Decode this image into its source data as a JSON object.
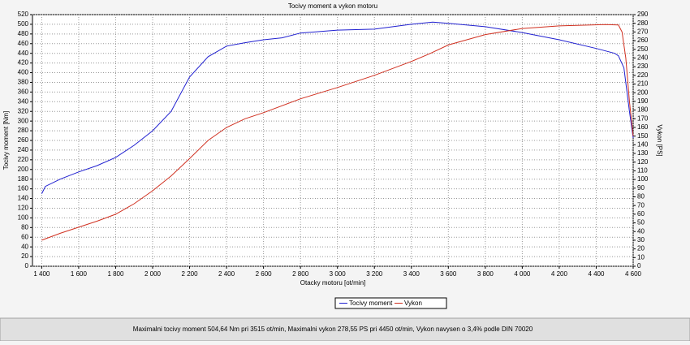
{
  "chart_data": {
    "type": "line",
    "title": "Tocivy moment a vykon motoru",
    "x_label": "Otacky motoru [ot/min]",
    "y_label": "Tocivy moment [Nm]",
    "y2_label": "Vykon [PS]",
    "annotation": "Maximalni tocivy moment 504,64 Nm pri 3515 ot/min,  Maximalni vykon 278,55 PS pri 4450 ot/min,  Vykon navysen o 3,4% podle DIN 70020",
    "grid": true,
    "legend": "bottom",
    "xlim": [
      1350,
      4600
    ],
    "xticks": [
      {
        "value": 1400,
        "label": "1 400"
      },
      {
        "value": 1600,
        "label": "1 600"
      },
      {
        "value": 1800,
        "label": "1 800"
      },
      {
        "value": 2000,
        "label": "2 000"
      },
      {
        "value": 2200,
        "label": "2 200"
      },
      {
        "value": 2400,
        "label": "2 400"
      },
      {
        "value": 2600,
        "label": "2 600"
      },
      {
        "value": 2800,
        "label": "2 800"
      },
      {
        "value": 3000,
        "label": "3 000"
      },
      {
        "value": 3200,
        "label": "3 200"
      },
      {
        "value": 3400,
        "label": "3 400"
      },
      {
        "value": 3600,
        "label": "3 600"
      },
      {
        "value": 3800,
        "label": "3 800"
      },
      {
        "value": 4000,
        "label": "4 000"
      },
      {
        "value": 4200,
        "label": "4 200"
      },
      {
        "value": 4400,
        "label": "4 400"
      },
      {
        "value": 4600,
        "label": "4 600"
      }
    ],
    "ylim": [
      0,
      520
    ],
    "yticks": [
      0,
      20,
      40,
      60,
      80,
      100,
      120,
      140,
      160,
      180,
      200,
      220,
      240,
      260,
      280,
      300,
      320,
      340,
      360,
      380,
      400,
      420,
      440,
      460,
      480,
      500,
      520
    ],
    "y2lim": [
      0,
      290
    ],
    "y2ticks": [
      0,
      10,
      20,
      30,
      40,
      50,
      60,
      70,
      80,
      90,
      100,
      110,
      120,
      130,
      140,
      150,
      160,
      170,
      180,
      190,
      200,
      210,
      220,
      230,
      240,
      250,
      260,
      270,
      280,
      290
    ],
    "series": [
      {
        "name": "Tocivy moment",
        "color": "#2020d0",
        "x": [
          1400,
          1420,
          1500,
          1600,
          1700,
          1800,
          1900,
          2000,
          2100,
          2200,
          2300,
          2400,
          2500,
          2600,
          2700,
          2800,
          3000,
          3200,
          3400,
          3515,
          3600,
          3800,
          4000,
          4200,
          4400,
          4500,
          4520,
          4550,
          4580,
          4600
        ],
        "values": [
          150,
          165,
          180,
          195,
          208,
          225,
          250,
          280,
          320,
          391,
          433,
          455,
          462,
          468,
          472,
          482,
          488,
          490,
          500,
          504.64,
          502,
          495,
          483,
          468,
          450,
          440,
          435,
          410,
          320,
          265
        ]
      },
      {
        "name": "Vykon",
        "color": "#d03020",
        "axis": "y2",
        "x": [
          1400,
          1500,
          1600,
          1700,
          1800,
          1900,
          2000,
          2100,
          2200,
          2300,
          2400,
          2500,
          2600,
          2800,
          3000,
          3200,
          3400,
          3500,
          3600,
          3800,
          4000,
          4200,
          4450,
          4520,
          4540,
          4560,
          4580,
          4600
        ],
        "values": [
          30,
          38,
          45,
          52,
          60,
          72,
          87,
          104,
          124,
          145,
          160,
          170,
          177,
          193,
          206,
          220,
          236,
          245,
          255,
          267,
          274,
          277,
          278.55,
          278,
          270,
          240,
          190,
          150
        ]
      }
    ]
  }
}
